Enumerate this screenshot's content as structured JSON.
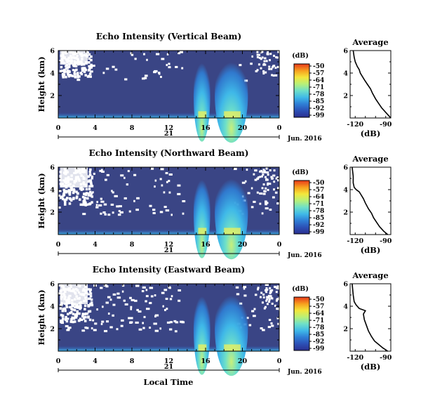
{
  "chart_data": {
    "type": "heatmap",
    "x_axis": {
      "ticks": [
        "0",
        "4",
        "8",
        "12",
        "16",
        "20",
        "0"
      ],
      "day_label": "21",
      "date_label": "Jun. 2016",
      "xlabel": "Local Time",
      "xlim": [
        0,
        24
      ]
    },
    "y_axis": {
      "ylabel": "Height (km)",
      "ticks": [
        "2",
        "4",
        "6"
      ],
      "ylim": [
        0,
        6
      ]
    },
    "colorbar": {
      "unit_label": "(dB)",
      "ticks": [
        "-50",
        "-57",
        "-64",
        "-71",
        "-78",
        "-85",
        "-92",
        "-99"
      ],
      "range": [
        -99,
        -50
      ],
      "colors": [
        "#2b2f8f",
        "#2c4fb5",
        "#2f7fd6",
        "#3fb8e8",
        "#6fe0c8",
        "#b6f07a",
        "#f4e63b",
        "#f7a21f",
        "#e8391a"
      ]
    },
    "panels": [
      {
        "title": "Echo Intensity (Vertical Beam)",
        "average": {
          "title": "Average",
          "xlabel": "(dB)",
          "xticks": [
            "-120",
            "-90"
          ],
          "yticks": [
            "2",
            "4",
            "6"
          ],
          "xlim": [
            -125,
            -85
          ],
          "ylim": [
            0,
            6
          ],
          "profile": [
            [
              -85,
              0.0
            ],
            [
              -88,
              0.3
            ],
            [
              -91,
              0.6
            ],
            [
              -94,
              0.9
            ],
            [
              -97,
              1.3
            ],
            [
              -100,
              1.7
            ],
            [
              -103,
              2.2
            ],
            [
              -105,
              2.6
            ],
            [
              -108,
              3.0
            ],
            [
              -111,
              3.4
            ],
            [
              -113,
              3.7
            ],
            [
              -115,
              4.0
            ],
            [
              -116,
              4.3
            ],
            [
              -118,
              4.6
            ],
            [
              -120,
              5.0
            ],
            [
              -121,
              5.4
            ],
            [
              -122,
              6.0
            ]
          ]
        }
      },
      {
        "title": "Echo Intensity (Northward Beam)",
        "average": {
          "title": "Average",
          "xlabel": "(dB)",
          "xticks": [
            "-120",
            "-90"
          ],
          "yticks": [
            "2",
            "4",
            "6"
          ],
          "xlim": [
            -125,
            -85
          ],
          "ylim": [
            0,
            6
          ],
          "profile": [
            [
              -88,
              0.0
            ],
            [
              -92,
              0.3
            ],
            [
              -96,
              0.7
            ],
            [
              -99,
              1.1
            ],
            [
              -102,
              1.5
            ],
            [
              -104,
              1.9
            ],
            [
              -107,
              2.3
            ],
            [
              -110,
              2.8
            ],
            [
              -112,
              3.2
            ],
            [
              -114,
              3.5
            ],
            [
              -116,
              3.8
            ],
            [
              -119,
              4.0
            ],
            [
              -121,
              4.2
            ],
            [
              -122,
              4.6
            ],
            [
              -122,
              5.2
            ],
            [
              -123,
              6.0
            ]
          ]
        }
      },
      {
        "title": "Echo Intensity (Eastward Beam)",
        "average": {
          "title": "Average",
          "xlabel": "(dB)",
          "xticks": [
            "-120",
            "-90"
          ],
          "yticks": [
            "2",
            "4",
            "6"
          ],
          "xlim": [
            -125,
            -85
          ],
          "ylim": [
            0,
            6
          ],
          "profile": [
            [
              -88,
              0.0
            ],
            [
              -93,
              0.3
            ],
            [
              -97,
              0.6
            ],
            [
              -101,
              0.9
            ],
            [
              -104,
              1.3
            ],
            [
              -107,
              1.8
            ],
            [
              -109,
              2.3
            ],
            [
              -111,
              2.8
            ],
            [
              -112,
              3.3
            ],
            [
              -110,
              3.6
            ],
            [
              -116,
              3.8
            ],
            [
              -119,
              4.1
            ],
            [
              -121,
              4.4
            ],
            [
              -122,
              5.0
            ],
            [
              -123,
              6.0
            ]
          ]
        }
      }
    ]
  }
}
